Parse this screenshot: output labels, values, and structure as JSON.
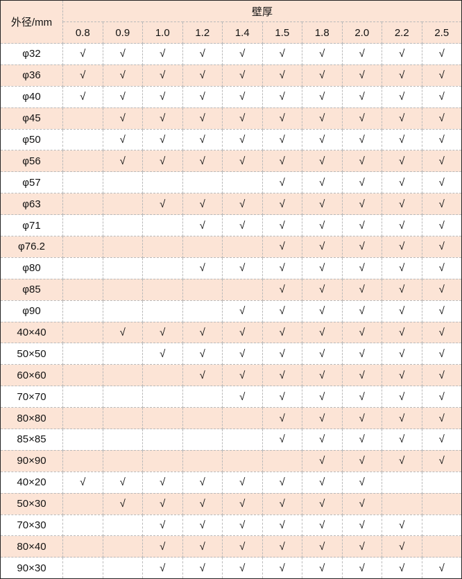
{
  "header": {
    "row_label": "外径/mm",
    "group_label": "壁厚",
    "thickness": [
      "0.8",
      "0.9",
      "1.0",
      "1.2",
      "1.4",
      "1.5",
      "1.8",
      "2.0",
      "2.2",
      "2.5"
    ]
  },
  "colors": {
    "stripe": "#fce4d6"
  },
  "rows": [
    {
      "size": "φ32",
      "cells": [
        "√",
        "√",
        "√",
        "√",
        "√",
        "√",
        "√",
        "√",
        "√",
        "√"
      ]
    },
    {
      "size": "φ36",
      "cells": [
        "√",
        "√",
        "√",
        "√",
        "√",
        "√",
        "√",
        "√",
        "√",
        "√"
      ]
    },
    {
      "size": "φ40",
      "cells": [
        "√",
        "√",
        "√",
        "√",
        "√",
        "√",
        "√",
        "√",
        "√",
        "√"
      ]
    },
    {
      "size": "φ45",
      "cells": [
        "",
        "√",
        "√",
        "√",
        "√",
        "√",
        "√",
        "√",
        "√",
        "√"
      ]
    },
    {
      "size": "φ50",
      "cells": [
        "",
        "√",
        "√",
        "√",
        "√",
        "√",
        "√",
        "√",
        "√",
        "√"
      ]
    },
    {
      "size": "φ56",
      "cells": [
        "",
        "√",
        "√",
        "√",
        "√",
        "√",
        "√",
        "√",
        "√",
        "√"
      ]
    },
    {
      "size": "φ57",
      "cells": [
        "",
        "",
        "",
        "",
        "",
        "√",
        "√",
        "√",
        "√",
        "√"
      ]
    },
    {
      "size": "φ63",
      "cells": [
        "",
        "",
        "√",
        "√",
        "√",
        "√",
        "√",
        "√",
        "√",
        "√"
      ]
    },
    {
      "size": "φ71",
      "cells": [
        "",
        "",
        "",
        "√",
        "√",
        "√",
        "√",
        "√",
        "√",
        "√"
      ]
    },
    {
      "size": "φ76.2",
      "cells": [
        "",
        "",
        "",
        "",
        "",
        "√",
        "√",
        "√",
        "√",
        "√"
      ]
    },
    {
      "size": "φ80",
      "cells": [
        "",
        "",
        "",
        "√",
        "√",
        "√",
        "√",
        "√",
        "√",
        "√"
      ]
    },
    {
      "size": "φ85",
      "cells": [
        "",
        "",
        "",
        "",
        "",
        "√",
        "√",
        "√",
        "√",
        "√"
      ]
    },
    {
      "size": "φ90",
      "cells": [
        "",
        "",
        "",
        "",
        "√",
        "√",
        "√",
        "√",
        "√",
        "√"
      ]
    },
    {
      "size": "40×40",
      "cells": [
        "",
        "√",
        "√",
        "√",
        "√",
        "√",
        "√",
        "√",
        "√",
        "√"
      ]
    },
    {
      "size": "50×50",
      "cells": [
        "",
        "",
        "√",
        "√",
        "√",
        "√",
        "√",
        "√",
        "√",
        "√"
      ]
    },
    {
      "size": "60×60",
      "cells": [
        "",
        "",
        "",
        "√",
        "√",
        "√",
        "√",
        "√",
        "√",
        "√"
      ]
    },
    {
      "size": "70×70",
      "cells": [
        "",
        "",
        "",
        "",
        "√",
        "√",
        "√",
        "√",
        "√",
        "√"
      ]
    },
    {
      "size": "80×80",
      "cells": [
        "",
        "",
        "",
        "",
        "",
        "√",
        "√",
        "√",
        "√",
        "√"
      ]
    },
    {
      "size": "85×85",
      "cells": [
        "",
        "",
        "",
        "",
        "",
        "√",
        "√",
        "√",
        "√",
        "√"
      ]
    },
    {
      "size": "90×90",
      "cells": [
        "",
        "",
        "",
        "",
        "",
        "",
        "√",
        "√",
        "√",
        "√"
      ]
    },
    {
      "size": "40×20",
      "cells": [
        "√",
        "√",
        "√",
        "√",
        "√",
        "√",
        "√",
        "√",
        "",
        ""
      ]
    },
    {
      "size": "50×30",
      "cells": [
        "",
        "√",
        "√",
        "√",
        "√",
        "√",
        "√",
        "√",
        "",
        ""
      ]
    },
    {
      "size": "70×30",
      "cells": [
        "",
        "",
        "√",
        "√",
        "√",
        "√",
        "√",
        "√",
        "√",
        ""
      ]
    },
    {
      "size": "80×40",
      "cells": [
        "",
        "",
        "√",
        "√",
        "√",
        "√",
        "√",
        "√",
        "√",
        ""
      ]
    },
    {
      "size": "90×30",
      "cells": [
        "",
        "",
        "√",
        "√",
        "√",
        "√",
        "√",
        "√",
        "√",
        "√"
      ]
    }
  ]
}
